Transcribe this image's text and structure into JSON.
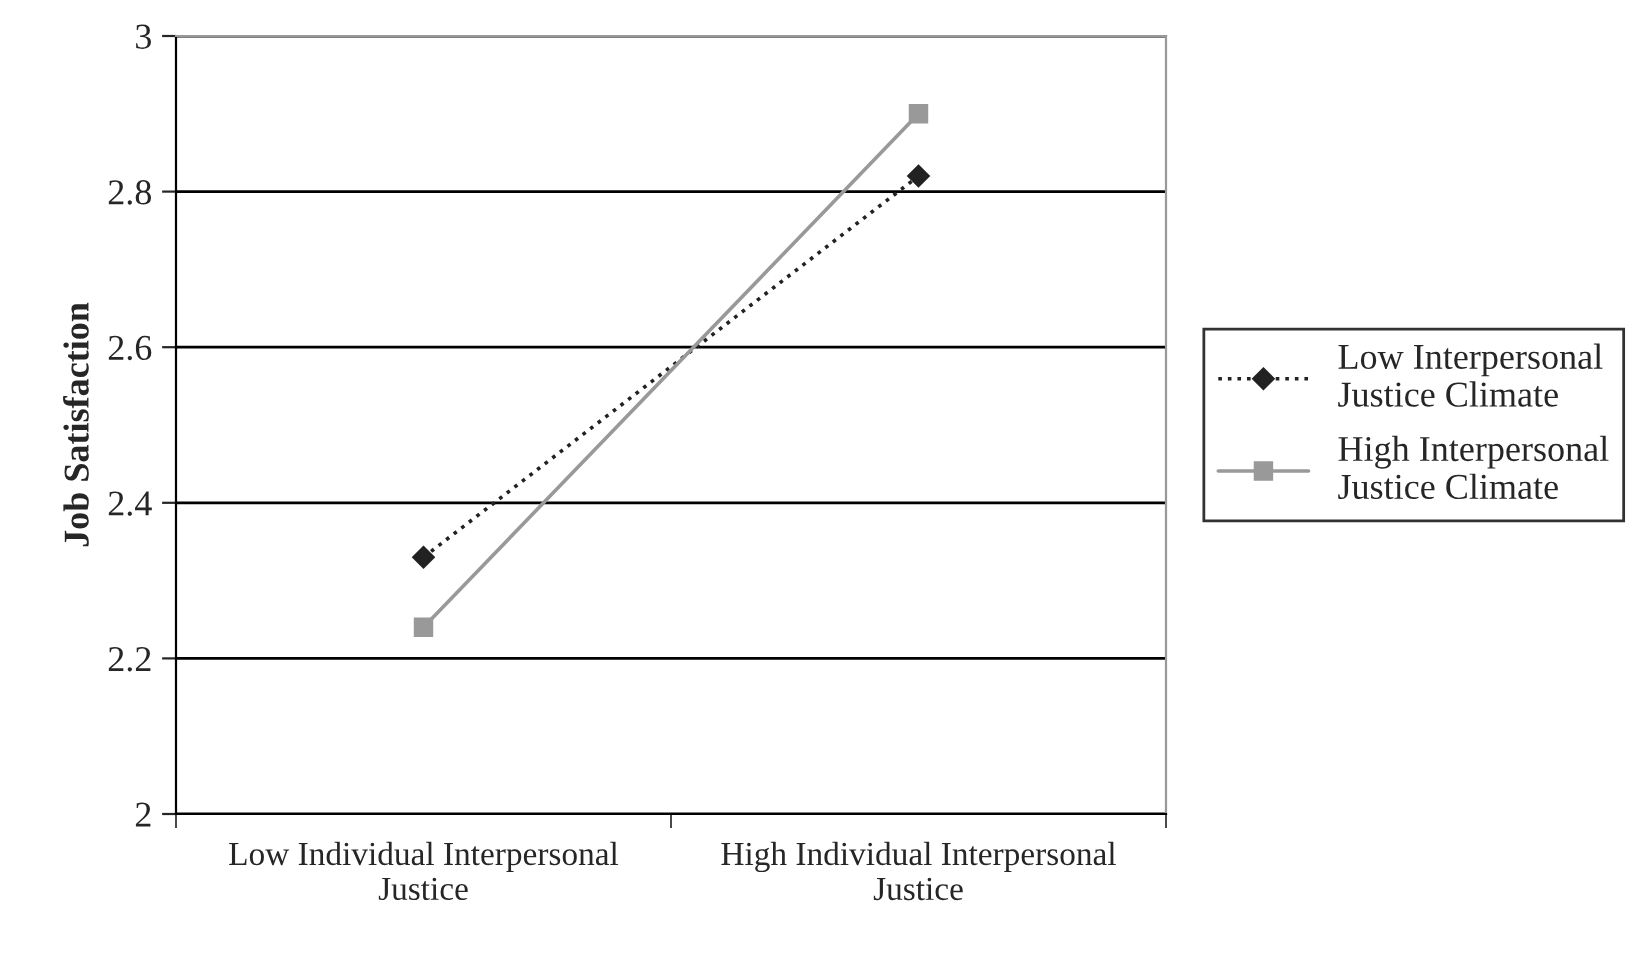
{
  "chart_data": {
    "type": "line",
    "ylabel": "Job Satisfaction",
    "categories": [
      "Low Individual Interpersonal\nJustice",
      "High Individual Interpersonal\nJustice"
    ],
    "series": [
      {
        "name": "Low Interpersonal\nJustice Climate",
        "color": "#222222",
        "values": [
          2.33,
          2.82
        ],
        "marker": "diamond",
        "line_style": "dotted"
      },
      {
        "name": "High Interpersonal\nJustice Climate",
        "color": "#999999",
        "values": [
          2.24,
          2.9
        ],
        "marker": "square",
        "line_style": "solid"
      }
    ],
    "ylim": [
      2,
      3
    ],
    "yticks": [
      2,
      2.2,
      2.4,
      2.6,
      2.8,
      3
    ],
    "grid": "y",
    "legend": "right"
  }
}
